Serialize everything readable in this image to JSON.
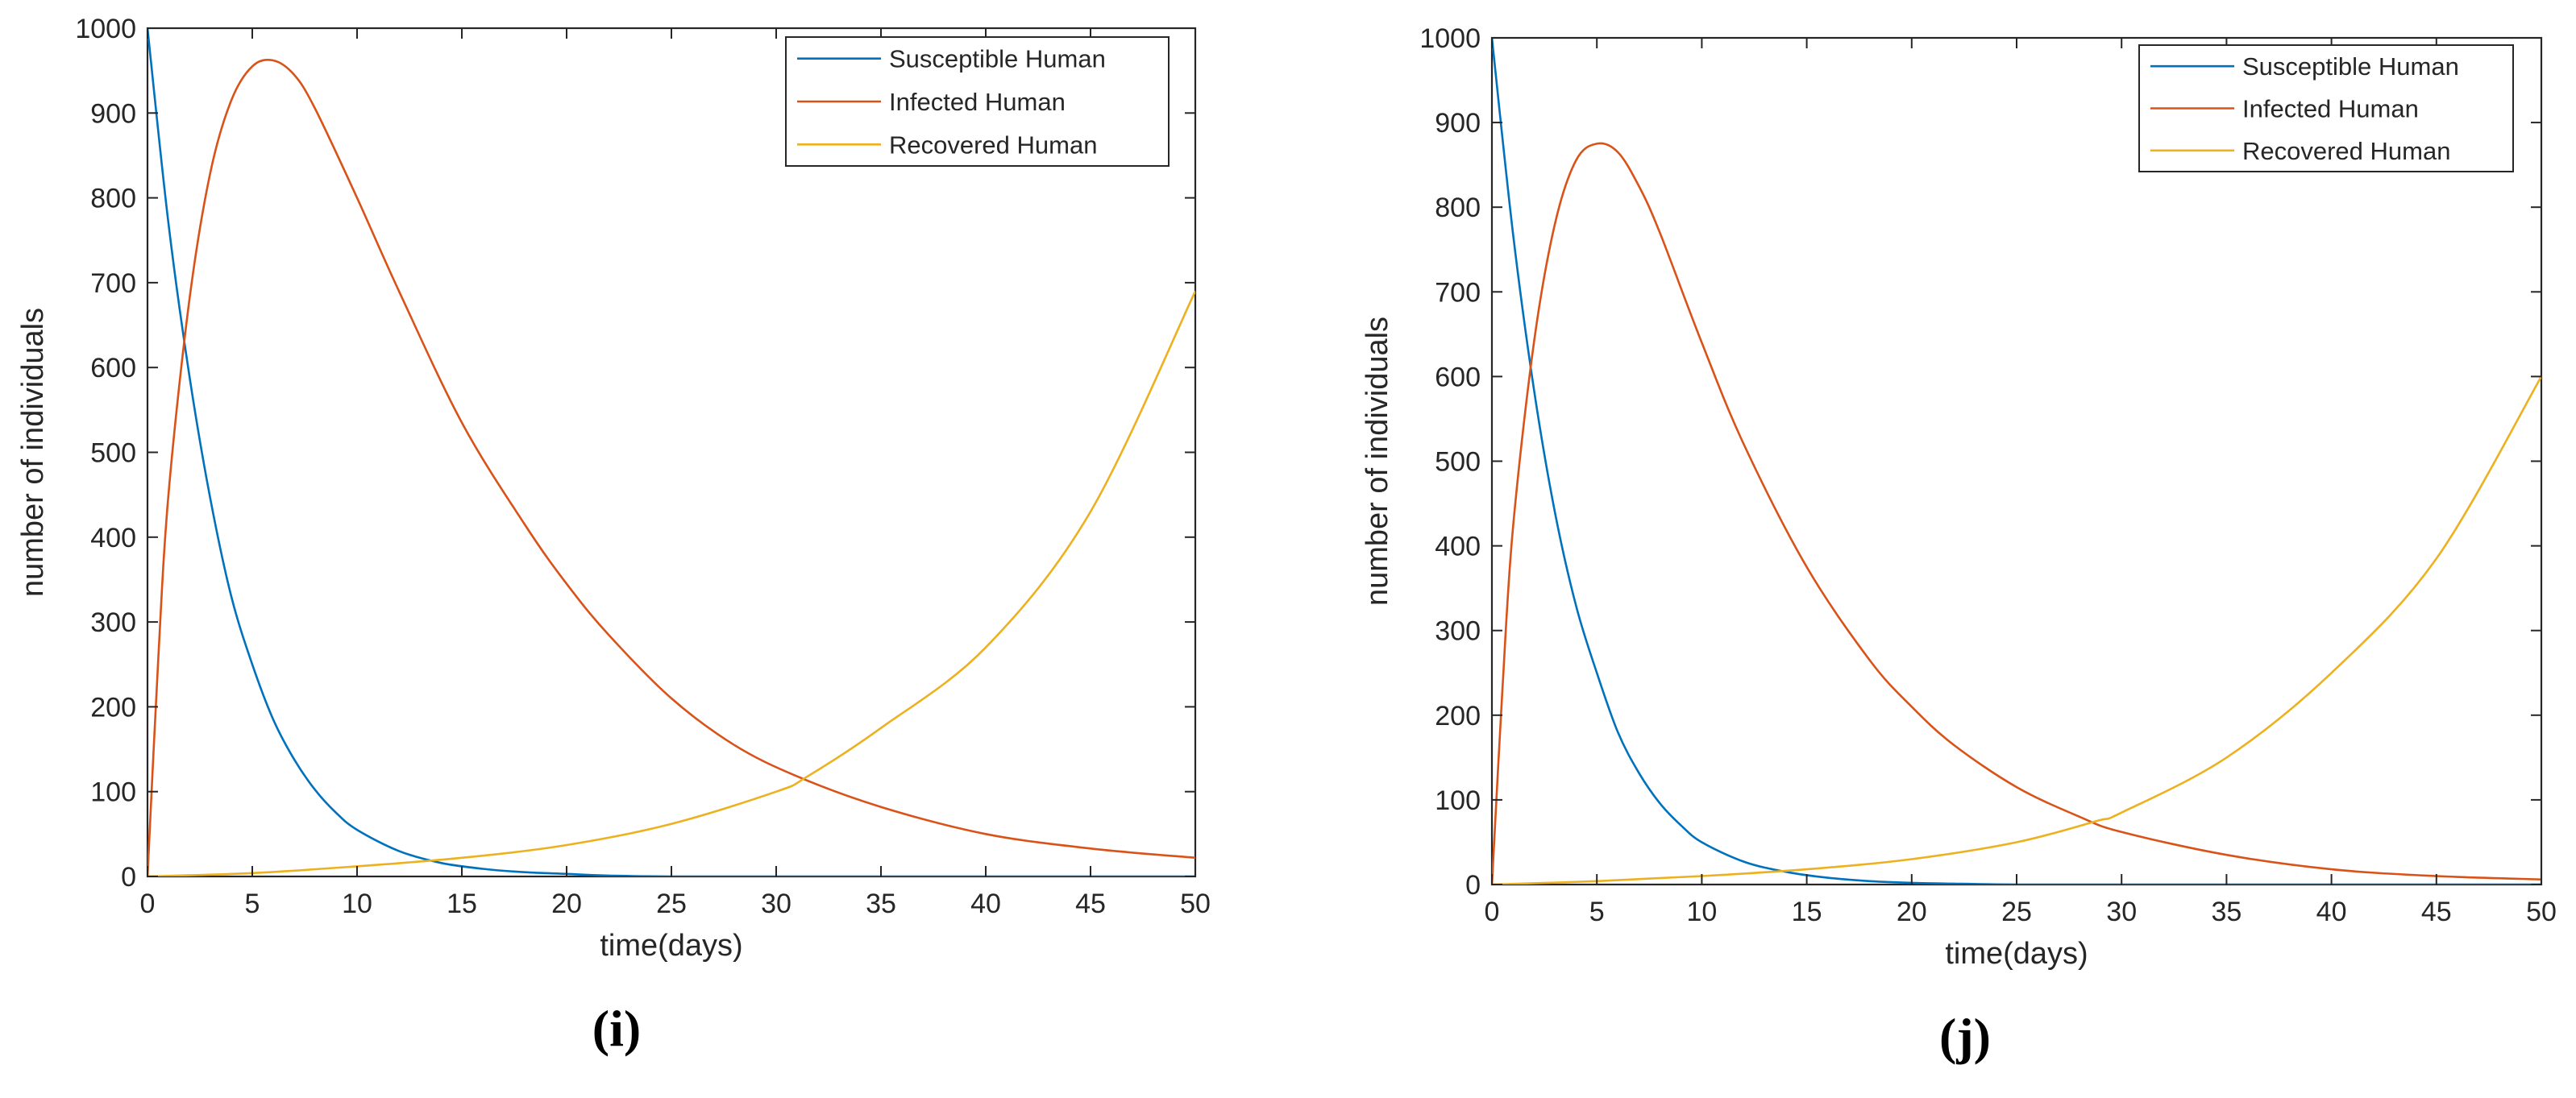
{
  "chart_data": [
    {
      "type": "line",
      "panel_label": "(i)",
      "title": "",
      "xlabel": "time(days)",
      "ylabel": "number of individuals",
      "xlim": [
        0,
        50
      ],
      "ylim": [
        0,
        1000
      ],
      "xticks": [
        0,
        5,
        10,
        15,
        20,
        25,
        30,
        35,
        40,
        45,
        50
      ],
      "yticks": [
        0,
        100,
        200,
        300,
        400,
        500,
        600,
        700,
        800,
        900,
        1000
      ],
      "legend_position": "top-right",
      "grid": false,
      "series": [
        {
          "name": "Susceptible Human",
          "color": "#0072BD",
          "x": [
            0,
            1,
            2,
            3,
            4,
            5,
            6,
            7,
            8,
            9,
            10,
            12,
            14,
            16,
            18,
            20,
            22,
            25,
            30,
            35,
            40,
            45,
            50
          ],
          "y": [
            1000,
            770,
            590,
            445,
            330,
            250,
            185,
            138,
            102,
            75,
            55,
            30,
            16,
            9,
            5,
            3,
            1,
            0,
            0,
            0,
            0,
            0,
            0
          ]
        },
        {
          "name": "Infected Human",
          "color": "#D95319",
          "x": [
            0,
            0.5,
            1,
            2,
            3,
            4,
            5,
            6,
            7,
            8,
            10,
            12,
            15,
            18,
            20,
            22,
            25,
            28,
            31,
            35,
            40,
            45,
            50
          ],
          "y": [
            0,
            250,
            450,
            680,
            830,
            915,
            955,
            962,
            945,
            905,
            800,
            690,
            535,
            415,
            345,
            285,
            210,
            155,
            118,
            82,
            50,
            33,
            22
          ]
        },
        {
          "name": "Recovered Human",
          "color": "#EDB120",
          "x": [
            0,
            5,
            10,
            15,
            20,
            25,
            30,
            31.5,
            35,
            40,
            45,
            50
          ],
          "y": [
            0,
            4,
            12,
            22,
            37,
            62,
            100,
            118,
            175,
            270,
            430,
            690
          ]
        }
      ]
    },
    {
      "type": "line",
      "panel_label": "(j)",
      "title": "",
      "xlabel": "time(days)",
      "ylabel": "number of individuals",
      "xlim": [
        0,
        50
      ],
      "ylim": [
        0,
        1000
      ],
      "xticks": [
        0,
        5,
        10,
        15,
        20,
        25,
        30,
        35,
        40,
        45,
        50
      ],
      "yticks": [
        0,
        100,
        200,
        300,
        400,
        500,
        600,
        700,
        800,
        900,
        1000
      ],
      "legend_position": "top-right",
      "grid": false,
      "series": [
        {
          "name": "Susceptible Human",
          "color": "#0072BD",
          "x": [
            0,
            1,
            2,
            3,
            4,
            5,
            6,
            7,
            8,
            9,
            10,
            12,
            14,
            16,
            18,
            20,
            22,
            25,
            30,
            35,
            40,
            45,
            50
          ],
          "y": [
            1000,
            770,
            585,
            440,
            330,
            250,
            180,
            132,
            96,
            70,
            50,
            27,
            15,
            8,
            4,
            2,
            1,
            0,
            0,
            0,
            0,
            0,
            0
          ]
        },
        {
          "name": "Infected Human",
          "color": "#D95319",
          "x": [
            0,
            0.5,
            1,
            2,
            3,
            4,
            5,
            6,
            7,
            8,
            10,
            12,
            15,
            18,
            20,
            22,
            25,
            28,
            30,
            35,
            40,
            45,
            50
          ],
          "y": [
            0,
            230,
            420,
            640,
            780,
            855,
            875,
            865,
            825,
            770,
            640,
            520,
            375,
            265,
            210,
            165,
            115,
            80,
            62,
            35,
            18,
            10,
            6
          ]
        },
        {
          "name": "Recovered Human",
          "color": "#EDB120",
          "x": [
            0,
            5,
            10,
            15,
            20,
            25,
            28.8,
            30,
            35,
            40,
            45,
            50
          ],
          "y": [
            0,
            4,
            10,
            18,
            30,
            50,
            75,
            85,
            150,
            250,
            385,
            600
          ]
        }
      ]
    }
  ]
}
